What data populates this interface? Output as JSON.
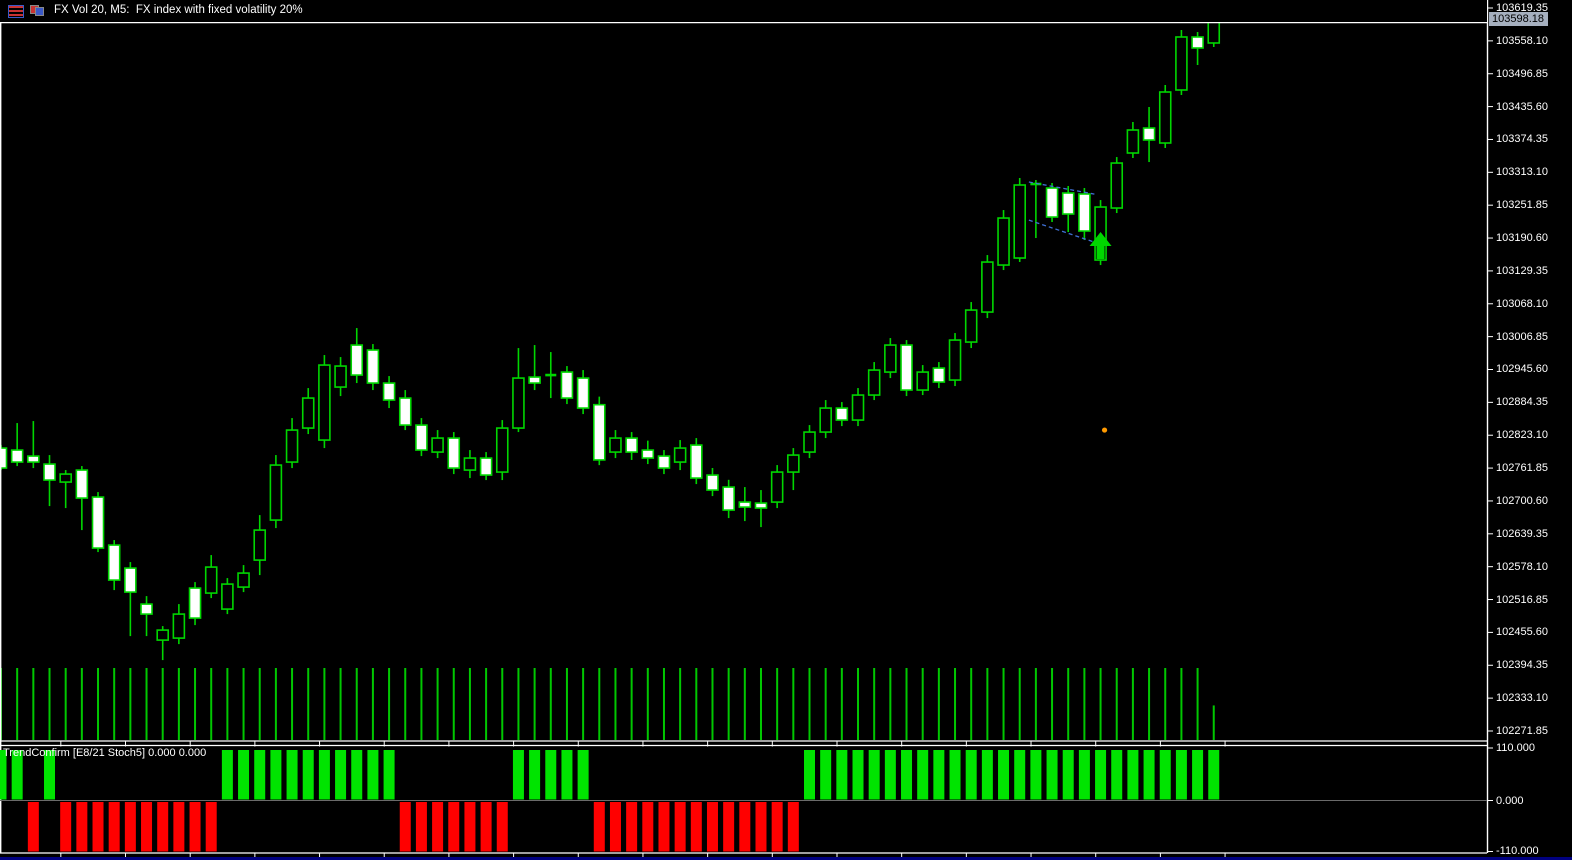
{
  "window": {
    "title": "FX Vol 20, M5:  FX index with fixed volatility 20%",
    "icons": [
      "list-icon",
      "candles-icon"
    ]
  },
  "price_axis": {
    "current_price_label": "103598.18"
  },
  "indicator": {
    "label": "TrendConfirm [E8/21 Stoch5] 0.000 0.000",
    "axis_labels": [
      "110.000",
      "0.000",
      "-110.000"
    ]
  },
  "colors": {
    "background": "#000000",
    "outline": "#00d600",
    "bull_fill": "#000000",
    "bear_fill": "#ffffff",
    "volume": "#00c800",
    "signal_up": "#00e400",
    "signal_down": "#ff0000",
    "price_line": "#9aa4b2",
    "price_label_bg": "#a6b0bf",
    "pennant": "#3f6fd4",
    "arrow": "#00d600",
    "dot": "#ff9a00",
    "axis_text": "#ffffff",
    "border": "#ffffff",
    "zero_line": "#6a6a6a",
    "end_marker": "#8a929c",
    "bottom_strip": "#000080"
  },
  "chart_data": {
    "type": "candlestick",
    "symbol": "FX Vol 20",
    "timeframe": "M5",
    "description": "FX index with fixed volatility 20%",
    "grid": "off",
    "price_axis_ticks": [
      "103619.35",
      "103558.10",
      "103496.85",
      "103435.60",
      "103374.35",
      "103313.10",
      "103251.85",
      "103190.60",
      "103129.35",
      "103068.10",
      "103006.85",
      "102945.60",
      "102884.35",
      "102823.10",
      "102761.85",
      "102700.60",
      "102639.35",
      "102578.10",
      "102516.85",
      "102455.60",
      "102394.35",
      "102333.10",
      "102271.85"
    ],
    "current_price": 103598.18,
    "candles": [
      [
        102799.15,
        102804.74,
        102758.14,
        102761.87
      ],
      [
        102795.42,
        102845.75,
        102765.6,
        102773.05
      ],
      [
        102784.24,
        102849.48,
        102761.87,
        102773.05
      ],
      [
        102769.33,
        102786.1,
        102691.04,
        102739.51
      ],
      [
        102735.78,
        102758.14,
        102687.31,
        102750.69
      ],
      [
        102758.14,
        102765.6,
        102646.3,
        102705.95
      ],
      [
        102707.82,
        102717.14,
        102605.3,
        102612.75
      ],
      [
        102618.34,
        102627.66,
        102534.46,
        102553.1
      ],
      [
        102575.47,
        102586.66,
        102448.71,
        102530.73
      ],
      [
        102508.36,
        102523.27,
        102448.71,
        102489.72
      ],
      [
        102441.25,
        102467.35,
        102403.97,
        102459.89
      ],
      [
        102444.98,
        102508.36,
        102433.79,
        102489.72
      ],
      [
        102538.19,
        102549.37,
        102469.21,
        102482.26
      ],
      [
        102528.87,
        102599.71,
        102519.54,
        102577.34
      ],
      [
        102499.04,
        102556.83,
        102489.72,
        102545.64
      ],
      [
        102540.05,
        102581.06,
        102530.73,
        102566.15
      ],
      [
        102590.39,
        102674.26,
        102562.43,
        102646.3
      ],
      [
        102664.94,
        102786.1,
        102650.03,
        102767.46
      ],
      [
        102773.05,
        102855.07,
        102761.87,
        102832.7
      ],
      [
        102836.43,
        102910.99,
        102825.25,
        102892.35
      ],
      [
        102814.06,
        102972.5,
        102799.15,
        102953.86
      ],
      [
        102912.86,
        102968.77,
        102896.07,
        102952.0
      ],
      [
        102991.14,
        103022.83,
        102920.31,
        102935.21
      ],
      [
        102981.82,
        102993.0,
        102907.27,
        102920.31
      ],
      [
        102920.31,
        102933.35,
        102873.71,
        102888.62
      ],
      [
        102892.35,
        102907.27,
        102832.7,
        102842.02
      ],
      [
        102842.02,
        102855.07,
        102784.24,
        102795.42
      ],
      [
        102791.69,
        102832.7,
        102780.51,
        102817.79
      ],
      [
        102817.79,
        102828.98,
        102750.69,
        102761.87
      ],
      [
        102758.14,
        102795.42,
        102743.24,
        102780.51
      ],
      [
        102780.51,
        102791.69,
        102739.51,
        102748.83
      ],
      [
        102754.42,
        102851.34,
        102739.51,
        102836.43
      ],
      [
        102836.43,
        102985.55,
        102828.98,
        102929.62
      ],
      [
        102931.49,
        102991.14,
        102907.27,
        102920.31
      ],
      [
        102935.21,
        102978.09,
        102892.35,
        102931.49
      ],
      [
        102940.8,
        102952.0,
        102881.16,
        102892.35
      ],
      [
        102929.62,
        102944.53,
        102862.52,
        102873.71
      ],
      [
        102880.0,
        102895.0,
        102767.46,
        102777.0
      ],
      [
        102791.69,
        102832.7,
        102780.51,
        102817.79
      ],
      [
        102817.79,
        102828.98,
        102777.0,
        102791.69
      ],
      [
        102795.42,
        102813.0,
        102769.33,
        102780.51
      ],
      [
        102784.24,
        102795.42,
        102750.69,
        102761.87
      ],
      [
        102773.05,
        102814.06,
        102758.14,
        102799.15
      ],
      [
        102804.74,
        102817.79,
        102732.05,
        102743.24
      ],
      [
        102748.83,
        102762.0,
        102709.68,
        102720.87
      ],
      [
        102726.46,
        102740.0,
        102668.67,
        102683.58
      ],
      [
        102698.49,
        102726.46,
        102663.08,
        102689.17
      ],
      [
        102696.63,
        102720.87,
        102651.89,
        102687.31
      ],
      [
        102698.49,
        102767.46,
        102687.31,
        102754.42
      ],
      [
        102754.42,
        102799.15,
        102720.87,
        102786.1
      ],
      [
        102791.69,
        102842.02,
        102780.51,
        102828.98
      ],
      [
        102828.98,
        102888.62,
        102817.79,
        102873.71
      ],
      [
        102873.71,
        102884.89,
        102840.15,
        102851.34
      ],
      [
        102851.34,
        102910.99,
        102840.15,
        102897.94
      ],
      [
        102897.94,
        102959.45,
        102888.62,
        102944.53
      ],
      [
        102940.8,
        103004.19,
        102929.62,
        102991.14
      ],
      [
        102991.14,
        103000.46,
        102896.07,
        102907.27
      ],
      [
        102907.27,
        102953.86,
        102897.94,
        102940.8
      ],
      [
        102948.26,
        102959.45,
        102910.99,
        102922.17
      ],
      [
        102925.9,
        103013.51,
        102914.72,
        103000.46
      ],
      [
        102996.73,
        103071.29,
        102985.55,
        103056.38
      ],
      [
        103052.65,
        103158.9,
        103041.46,
        103145.85
      ],
      [
        103140.26,
        103242.78,
        103130.94,
        103227.87
      ],
      [
        103153.35,
        103302.49,
        103145.85,
        103289.44
      ],
      [
        103289.44,
        103298.76,
        103190.63,
        103291.3
      ],
      [
        103283.85,
        103293.17,
        103220.46,
        103229.78
      ],
      [
        103274.53,
        103287.58,
        103201.81,
        103235.37
      ],
      [
        103272.66,
        103283.85,
        103186.9,
        103203.68
      ],
      [
        103149.62,
        103261.42,
        103140.26,
        103248.37
      ],
      [
        103246.51,
        103341.56,
        103237.19,
        103330.38
      ],
      [
        103349.08,
        103406.86,
        103339.76,
        103391.95
      ],
      [
        103395.68,
        103434.82,
        103332.24,
        103373.31
      ],
      [
        103367.72,
        103475.83,
        103358.4,
        103462.78
      ],
      [
        103466.51,
        103578.35,
        103457.19,
        103565.3
      ],
      [
        103565.3,
        103574.62,
        103513.11,
        103544.8
      ],
      [
        103554.12,
        103610.04,
        103546.66,
        103598.18
      ]
    ],
    "volume": {
      "style": "uniform-ticks",
      "last_bar_fraction": 0.48
    },
    "indicator_panel": {
      "name": "TrendConfirm [E8/21 Stoch5]",
      "current_values": "0.000 0.000",
      "axis": [
        110.0,
        0.0,
        -110.0
      ],
      "signals": [
        1,
        1,
        -1,
        1,
        -1,
        -1,
        -1,
        -1,
        -1,
        -1,
        -1,
        -1,
        -1,
        -1,
        1,
        1,
        1,
        1,
        1,
        1,
        1,
        1,
        1,
        1,
        1,
        -1,
        -1,
        -1,
        -1,
        -1,
        -1,
        -1,
        1,
        1,
        1,
        1,
        1,
        -1,
        -1,
        -1,
        -1,
        -1,
        -1,
        -1,
        -1,
        -1,
        -1,
        -1,
        -1,
        -1,
        1,
        1,
        1,
        1,
        1,
        1,
        1,
        1,
        1,
        1,
        1,
        1,
        1,
        1,
        1,
        1,
        1,
        1,
        1,
        1,
        1,
        1,
        1,
        1,
        1,
        1,
        0
      ]
    },
    "markers": {
      "buy_arrow": {
        "candle_index": 68,
        "price": 103201.9
      },
      "orange_dot": {
        "candle_index": 68,
        "price": 102832.7
      },
      "end_marker": {
        "candle_index": 75
      },
      "pennant": {
        "from_index": 64,
        "to_index": 67,
        "top_prices": [
          103295.0,
          103272.5
        ],
        "bottom_prices": [
          103224.0,
          103183.0
        ]
      }
    }
  }
}
